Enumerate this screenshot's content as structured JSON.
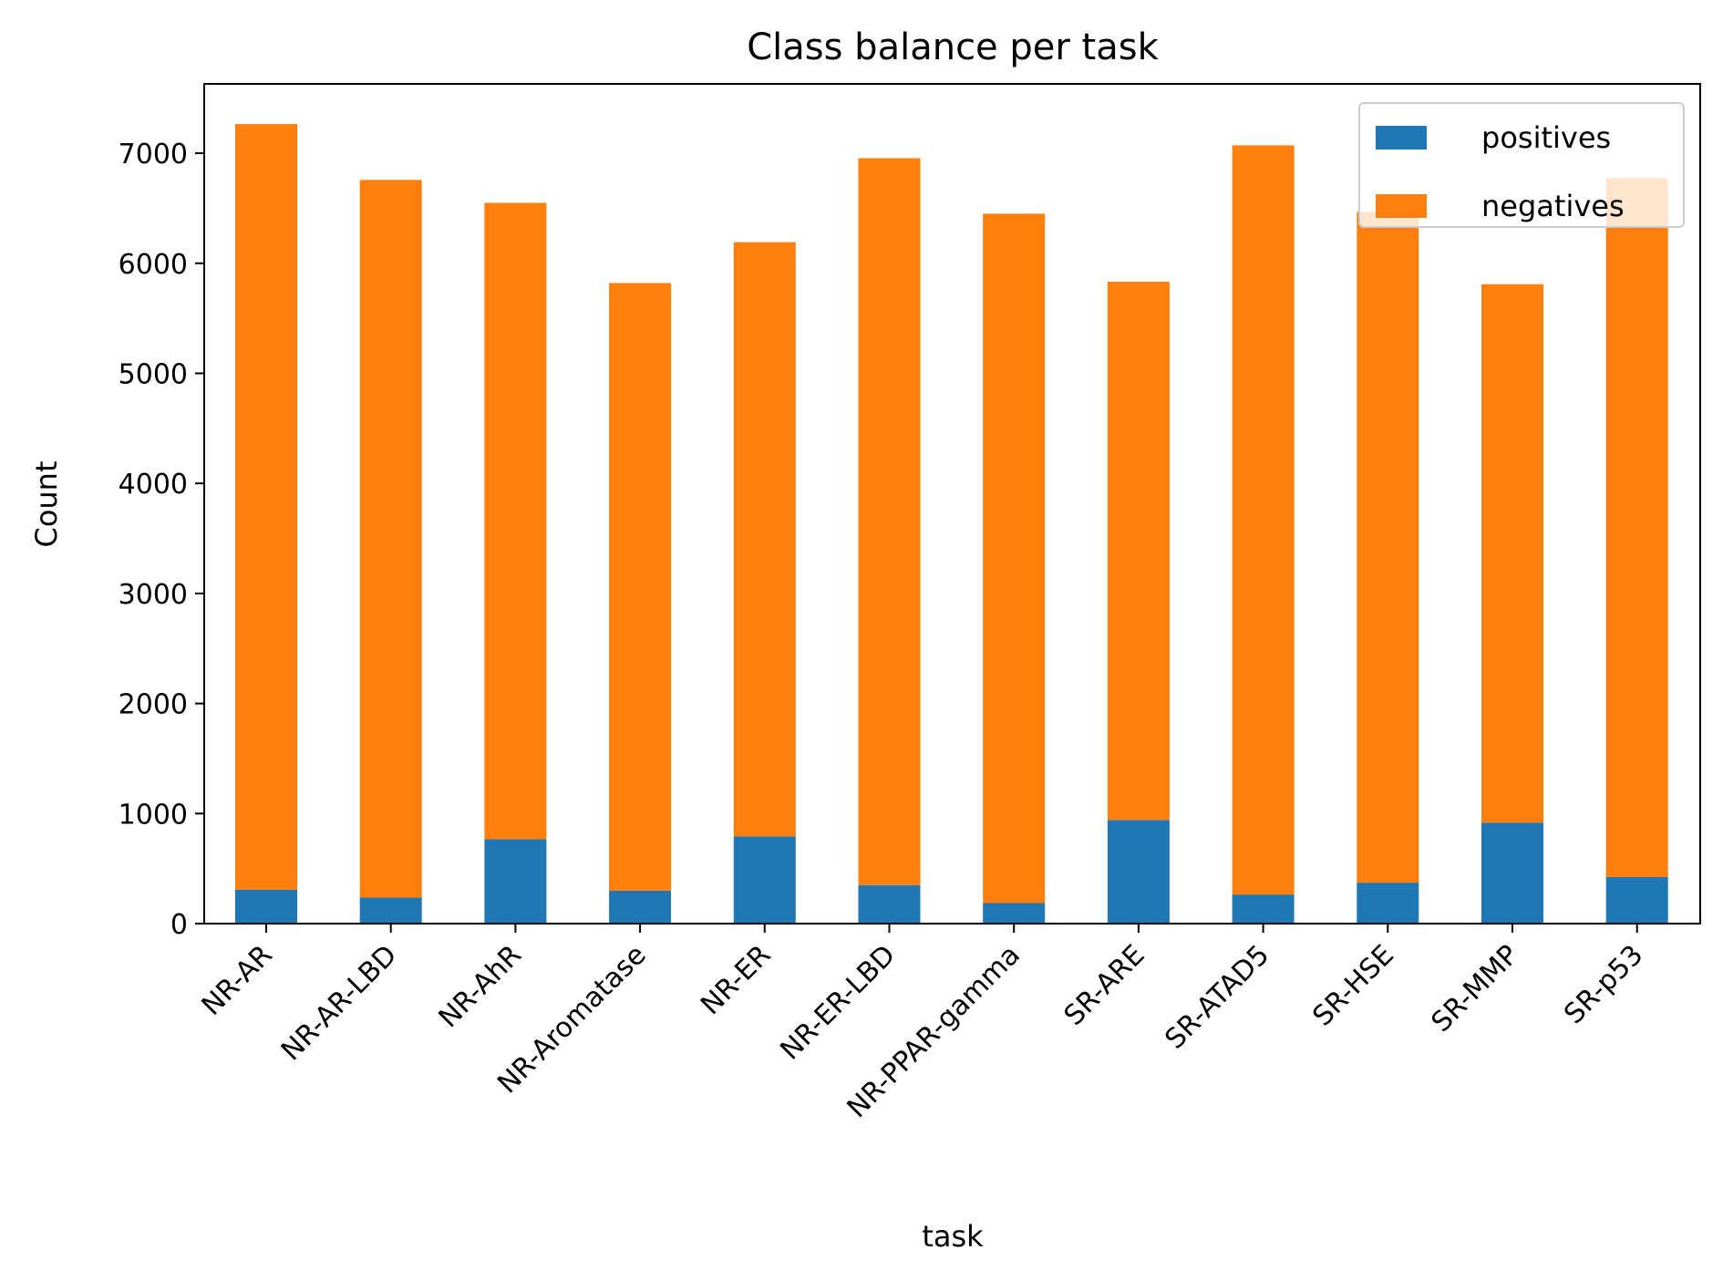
{
  "colors": {
    "positives": "#1f77b4",
    "negatives": "#ff7f0e",
    "axis": "#000000",
    "background": "#ffffff"
  },
  "chart_data": {
    "type": "bar",
    "stacked": true,
    "title": "Class balance per task",
    "xlabel": "task",
    "ylabel": "Count",
    "categories": [
      "NR-AR",
      "NR-AR-LBD",
      "NR-AhR",
      "NR-Aromatase",
      "NR-ER",
      "NR-ER-LBD",
      "NR-PPAR-gamma",
      "SR-ARE",
      "SR-ATAD5",
      "SR-HSE",
      "SR-MMP",
      "SR-p53"
    ],
    "series": [
      {
        "name": "positives",
        "values": [
          309,
          237,
          768,
          300,
          793,
          350,
          186,
          942,
          264,
          372,
          918,
          423
        ]
      },
      {
        "name": "negatives",
        "values": [
          6956,
          6521,
          5781,
          5521,
          5399,
          6605,
          6264,
          4890,
          6808,
          6095,
          4892,
          6351
        ]
      }
    ],
    "yticks": [
      0,
      1000,
      2000,
      3000,
      4000,
      5000,
      6000,
      7000
    ],
    "ylim": [
      0,
      7630
    ],
    "legend": {
      "position": "top-right",
      "entries": [
        "positives",
        "negatives"
      ]
    },
    "grid": false
  }
}
